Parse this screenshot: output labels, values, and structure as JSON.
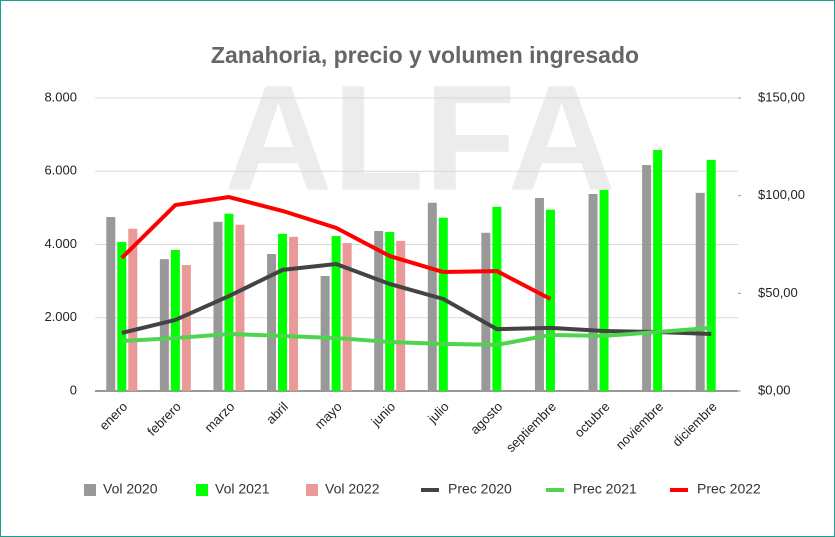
{
  "chart_data": {
    "type": "combo",
    "title": "Zanahoria, precio y volumen ingresado",
    "watermark": "ALFA",
    "categories": [
      "enero",
      "febrero",
      "marzo",
      "abril",
      "mayo",
      "junio",
      "julio",
      "agosto",
      "septiembre",
      "octubre",
      "noviembre",
      "diciembre"
    ],
    "series": [
      {
        "name": "Vol 2020",
        "type": "bar",
        "color": "#999999",
        "values": [
          4750,
          3600,
          4620,
          3740,
          3140,
          4370,
          5140,
          4320,
          5270,
          5380,
          6170,
          5410
        ]
      },
      {
        "name": "Vol 2021",
        "type": "bar",
        "color": "#00ff00",
        "values": [
          4070,
          3850,
          4840,
          4290,
          4230,
          4340,
          4730,
          5030,
          4950,
          5490,
          6580,
          6310
        ]
      },
      {
        "name": "Vol 2022",
        "type": "bar",
        "color": "#ea9999",
        "values": [
          4430,
          3440,
          4540,
          4210,
          4040,
          4100,
          null,
          null,
          null,
          null,
          null,
          null
        ]
      },
      {
        "name": "Prec 2020",
        "type": "line",
        "axis": "y2",
        "color": "#434343",
        "values": [
          29.7,
          36.4,
          48.6,
          62,
          65,
          54.8,
          47.1,
          31.7,
          32.3,
          30.7,
          30.2,
          29.2
        ]
      },
      {
        "name": "Prec 2021",
        "type": "line",
        "axis": "y2",
        "color": "#4fd44f",
        "values": [
          25.6,
          27.1,
          29.2,
          28.2,
          27.1,
          25.1,
          24.1,
          23.6,
          28.7,
          28.2,
          30.2,
          32.3
        ]
      },
      {
        "name": "Prec 2022",
        "type": "line",
        "axis": "y2",
        "color": "#ff0000",
        "values": [
          68.1,
          95.2,
          99.3,
          92.2,
          83.5,
          69.1,
          60.9,
          61.4,
          47.1,
          null,
          null,
          null
        ]
      }
    ],
    "ylim": [
      0,
      8000
    ],
    "yticks": [
      0,
      {
        "value": 2000,
        "label": "2.000"
      },
      {
        "value": 4000,
        "label": "4.000"
      },
      {
        "value": 6000,
        "label": "6.000"
      },
      {
        "value": 8000,
        "label": "8.000"
      }
    ],
    "y2lim": [
      0,
      150
    ],
    "y2ticks": [
      {
        "value": 0,
        "label": "$0,00"
      },
      {
        "value": 50,
        "label": "$50,00"
      },
      {
        "value": 100,
        "label": "$100,00"
      },
      {
        "value": 150,
        "label": "$150,00"
      }
    ],
    "grid": true,
    "legend": "bottom"
  }
}
